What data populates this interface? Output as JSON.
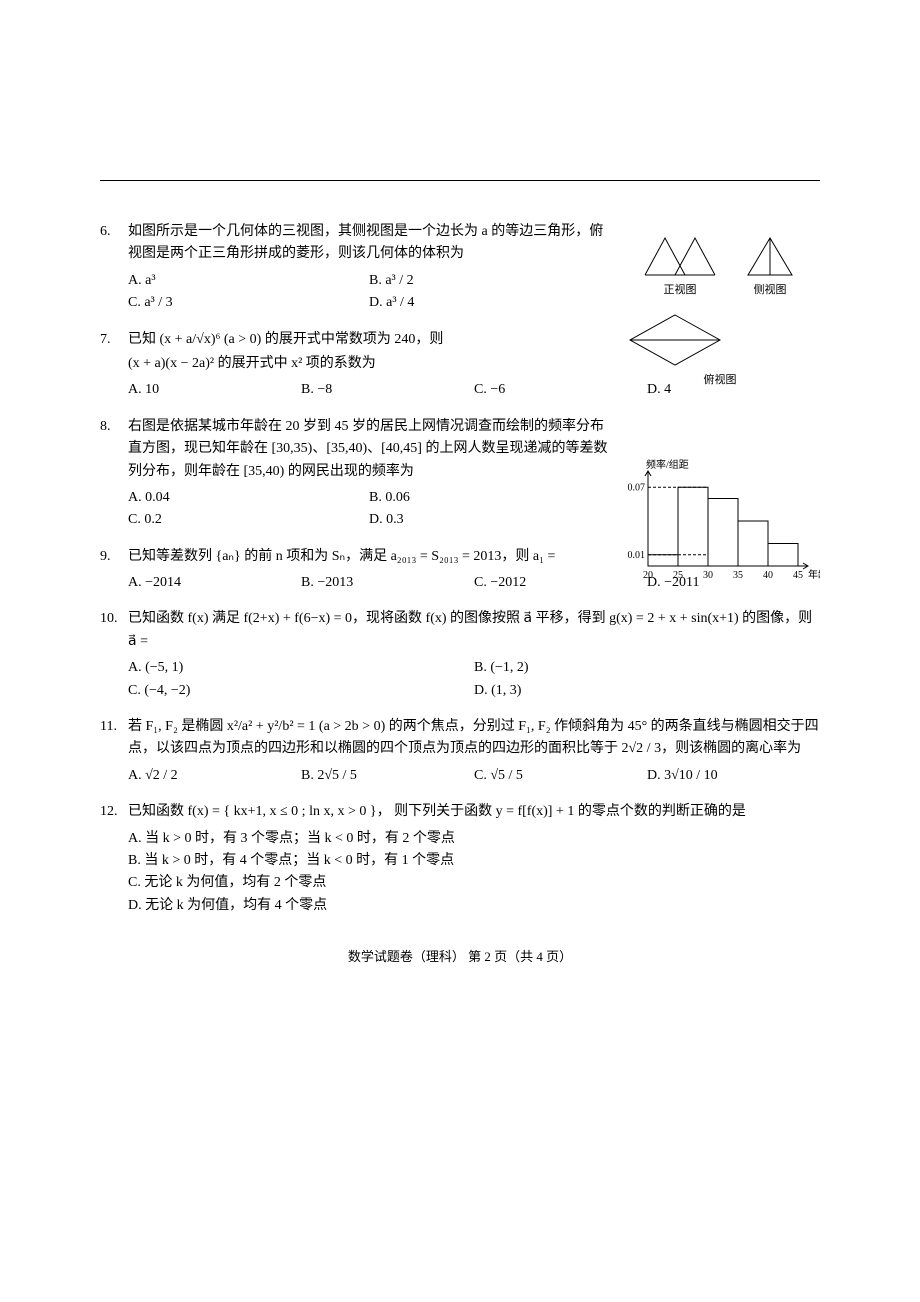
{
  "page": {
    "footer": "数学试题卷（理科）  第 2 页（共 4 页）"
  },
  "figures": {
    "views": {
      "front_label": "正视图",
      "side_label": "侧视图",
      "top_label": "俯视图",
      "stroke": "#000000",
      "fill": "none"
    },
    "histogram": {
      "type": "histogram",
      "ylabel": "频率/组距",
      "xlabel": "年龄",
      "x_ticks": [
        "20",
        "25",
        "30",
        "35",
        "40",
        "45"
      ],
      "y_ticks": [
        "0.01",
        "0.07"
      ],
      "bars": [
        {
          "x0": 20,
          "x1": 25,
          "h": 0.01
        },
        {
          "x0": 25,
          "x1": 30,
          "h": 0.07
        },
        {
          "x0": 30,
          "x1": 35,
          "h": 0.06
        },
        {
          "x0": 35,
          "x1": 40,
          "h": 0.04
        },
        {
          "x0": 40,
          "x1": 45,
          "h": 0.02
        }
      ],
      "ylim": [
        0,
        0.08
      ],
      "stroke": "#000000",
      "dash": "3,2",
      "axis_fontsize": 10
    }
  },
  "questions": [
    {
      "num": "6.",
      "narrow": "q6",
      "lines": [
        "如图所示是一个几何体的三视图，其侧视图是一个边长为 a 的等边三角形，俯视图是两个正三角形拼成的菱形，则该几何体的体积为"
      ],
      "options_layout": "2x2",
      "options": [
        {
          "label": "A.",
          "text": "a³"
        },
        {
          "label": "B.",
          "text": "a³ / 2"
        },
        {
          "label": "C.",
          "text": "a³ / 3"
        },
        {
          "label": "D.",
          "text": "a³ / 4"
        }
      ]
    },
    {
      "num": "7.",
      "lines": [
        "已知 (x + a/√x)⁶ (a > 0) 的展开式中常数项为 240，则",
        "(x + a)(x − 2a)² 的展开式中 x² 项的系数为"
      ],
      "options_layout": "1x4",
      "options": [
        {
          "label": "A.",
          "text": "10"
        },
        {
          "label": "B.",
          "text": "−8"
        },
        {
          "label": "C.",
          "text": "−6"
        },
        {
          "label": "D.",
          "text": "4"
        }
      ]
    },
    {
      "num": "8.",
      "narrow": "q8",
      "lines": [
        "右图是依据某城市年龄在 20 岁到 45 岁的居民上网情况调查而绘制的频率分布直方图，现已知年龄在 [30,35)、[35,40)、[40,45] 的上网人数呈现递减的等差数列分布，则年龄在 [35,40) 的网民出现的频率为"
      ],
      "options_layout": "2x2",
      "options": [
        {
          "label": "A.",
          "text": "0.04"
        },
        {
          "label": "B.",
          "text": "0.06"
        },
        {
          "label": "C.",
          "text": "0.2"
        },
        {
          "label": "D.",
          "text": "0.3"
        }
      ]
    },
    {
      "num": "9.",
      "lines": [
        "已知等差数列 {aₙ} 的前 n 项和为 Sₙ，满足 a₂₀₁₃ = S₂₀₁₃ = 2013，则 a₁ ="
      ],
      "options_layout": "1x4",
      "options": [
        {
          "label": "A.",
          "text": "−2014"
        },
        {
          "label": "B.",
          "text": "−2013"
        },
        {
          "label": "C.",
          "text": "−2012"
        },
        {
          "label": "D.",
          "text": "−2011"
        }
      ]
    },
    {
      "num": "10.",
      "lines": [
        "已知函数 f(x) 满足 f(2+x) + f(6−x) = 0，现将函数 f(x) 的图像按照 a⃗ 平移，得到 g(x) = 2 + x + sin(x+1) 的图像，则 a⃗ ="
      ],
      "options_layout": "2x2",
      "options": [
        {
          "label": "A.",
          "text": "(−5, 1)"
        },
        {
          "label": "B.",
          "text": "(−1, 2)"
        },
        {
          "label": "C.",
          "text": "(−4, −2)"
        },
        {
          "label": "D.",
          "text": "(1, 3)"
        }
      ]
    },
    {
      "num": "11.",
      "lines": [
        "若 F₁, F₂ 是椭圆 x²/a² + y²/b² = 1 (a > 2b > 0) 的两个焦点，分别过 F₁, F₂ 作倾斜角为 45° 的两条直线与椭圆相交于四点，以该四点为顶点的四边形和以椭圆的四个顶点为顶点的四边形的面积比等于 2√2 / 3，则该椭圆的离心率为"
      ],
      "options_layout": "1x4",
      "options": [
        {
          "label": "A.",
          "text": "√2 / 2"
        },
        {
          "label": "B.",
          "text": "2√5 / 5"
        },
        {
          "label": "C.",
          "text": "√5 / 5"
        },
        {
          "label": "D.",
          "text": "3√10 / 10"
        }
      ]
    },
    {
      "num": "12.",
      "lines": [
        "已知函数 f(x) = { kx+1, x ≤ 0 ;  ln x, x > 0 }，  则下列关于函数 y = f[f(x)] + 1 的零点个数的判断正确的是"
      ],
      "options_layout": "col1",
      "options": [
        {
          "label": "A.",
          "text": "当 k > 0 时，有 3 个零点；当 k < 0 时，有 2 个零点"
        },
        {
          "label": "B.",
          "text": "当 k > 0 时，有 4 个零点；当 k < 0 时，有 1 个零点"
        },
        {
          "label": "C.",
          "text": "无论 k 为何值，均有 2 个零点"
        },
        {
          "label": "D.",
          "text": "无论 k 为何值，均有 4 个零点"
        }
      ]
    }
  ]
}
